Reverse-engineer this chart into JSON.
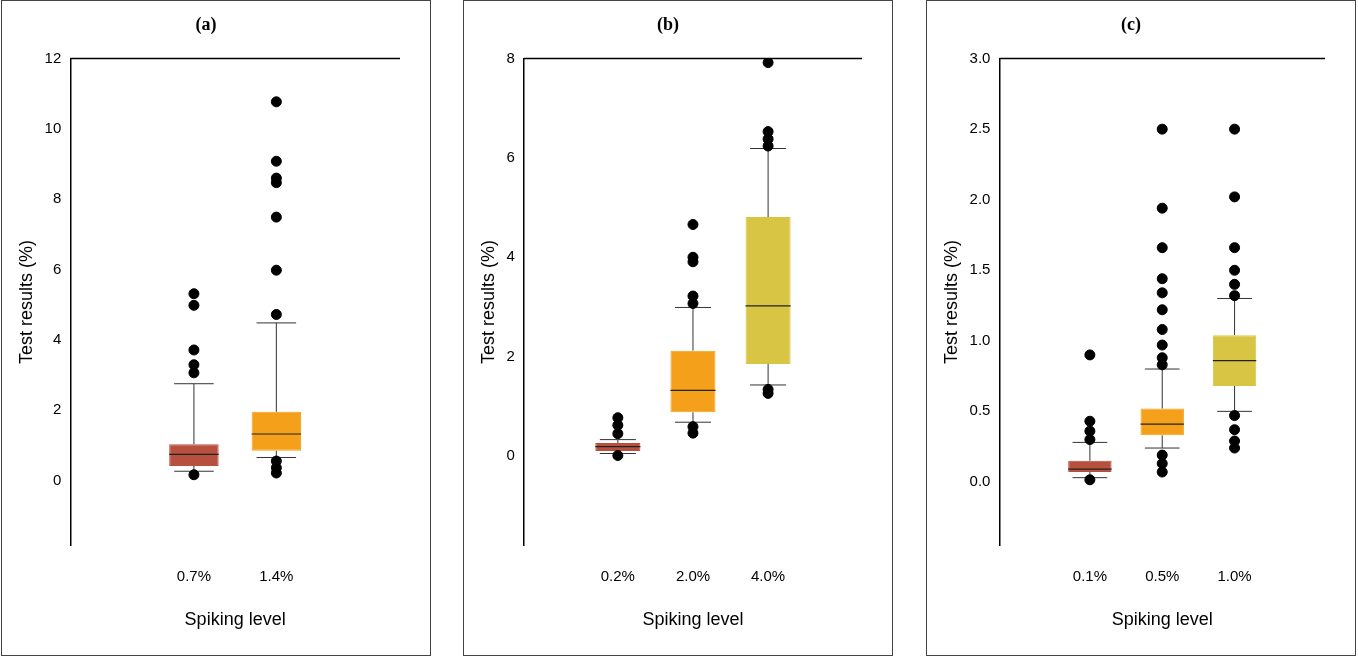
{
  "chart_data": [
    {
      "type": "box",
      "title": "(a)",
      "xlabel": "Spiking level",
      "ylabel": "Test results (%)",
      "categories": [
        "0.7%",
        "1.4%"
      ],
      "colors": [
        "#b85040",
        "#f5a01a"
      ],
      "ylim": [
        -1.85,
        12
      ],
      "yticks": [
        0,
        2,
        4,
        6,
        8,
        10,
        12
      ],
      "marker": "circle",
      "boxes": [
        {
          "low": 0.26,
          "q1": 0.41,
          "median": 0.74,
          "q3": 1.03,
          "high": 2.75,
          "outliers": [
            5.31,
            4.98,
            3.71,
            3.29,
            3.06,
            0.16
          ]
        },
        {
          "low": 0.65,
          "q1": 0.84,
          "median": 1.32,
          "q3": 1.95,
          "high": 4.48,
          "outliers": [
            10.77,
            9.08,
            8.6,
            8.47,
            7.49,
            5.98,
            4.72,
            0.55,
            0.36,
            0.21
          ]
        }
      ]
    },
    {
      "type": "box",
      "title": "(b)",
      "xlabel": "Spiking level",
      "ylabel": "Test results (%)",
      "categories": [
        "0.2%",
        "2.0%",
        "4.0%"
      ],
      "colors": [
        "#b85040",
        "#f5a01a",
        "#d8c544"
      ],
      "ylim": [
        -1.8,
        8
      ],
      "yticks": [
        0,
        2,
        4,
        6,
        8
      ],
      "marker": "circle",
      "boxes": [
        {
          "low": 0.05,
          "q1": 0.1,
          "median": 0.19,
          "q3": 0.26,
          "high": 0.33,
          "outliers": [
            0.77,
            0.62,
            0.45,
            0.01
          ]
        },
        {
          "low": 0.68,
          "q1": 0.88,
          "median": 1.32,
          "q3": 2.12,
          "high": 2.99,
          "outliers": [
            4.66,
            4.0,
            3.91,
            3.22,
            3.07,
            0.59,
            0.46
          ]
        },
        {
          "low": 1.43,
          "q1": 1.85,
          "median": 3.02,
          "q3": 4.81,
          "high": 6.19,
          "outliers": [
            7.92,
            6.53,
            6.38,
            6.24,
            1.34,
            1.26
          ]
        }
      ]
    },
    {
      "type": "box",
      "title": "(c)",
      "xlabel": "Spiking level",
      "ylabel": "Test results (%)",
      "categories": [
        "0.1%",
        "0.5%",
        "1.0%"
      ],
      "colors": [
        "#b85040",
        "#f5a01a",
        "#d8c544"
      ],
      "ylim": [
        -0.45,
        3
      ],
      "yticks": [
        {
          "value": 0,
          "label": "0.0"
        },
        {
          "value": 0.5,
          "label": "0.5"
        },
        {
          "value": 1,
          "label": "1.0"
        },
        {
          "value": 1.5,
          "label": "1.5"
        },
        {
          "value": 2,
          "label": "2.0"
        },
        {
          "value": 2.5,
          "label": "2.5"
        },
        {
          "value": 3,
          "label": "3.0"
        }
      ],
      "marker": "circle",
      "boxes": [
        {
          "low": 0.03,
          "q1": 0.07,
          "median": 0.09,
          "q3": 0.15,
          "high": 0.28,
          "outliers": [
            0.9,
            0.43,
            0.36,
            0.3,
            0.015
          ]
        },
        {
          "low": 0.24,
          "q1": 0.33,
          "median": 0.41,
          "q3": 0.52,
          "high": 0.8,
          "outliers": [
            2.5,
            1.94,
            1.66,
            1.44,
            1.34,
            1.22,
            1.08,
            0.97,
            0.88,
            0.83,
            0.19,
            0.13,
            0.07
          ]
        },
        {
          "low": 0.5,
          "q1": 0.68,
          "median": 0.86,
          "q3": 1.04,
          "high": 1.3,
          "outliers": [
            2.5,
            2.02,
            1.66,
            1.5,
            1.4,
            1.32,
            0.47,
            0.37,
            0.29,
            0.24
          ]
        }
      ]
    }
  ]
}
